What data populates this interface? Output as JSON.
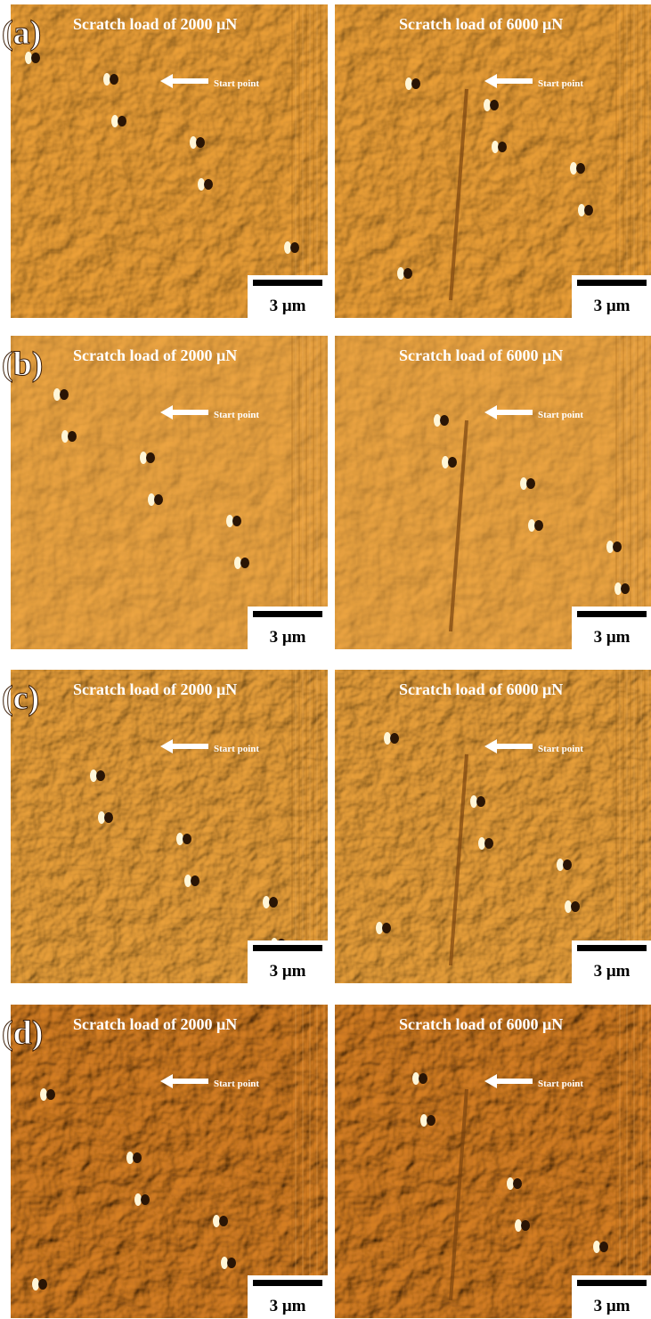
{
  "panels": [
    {
      "label": "(a)",
      "left": {
        "title": "Scratch load of 2000 μN",
        "start": "Start point",
        "scale": "3 μm"
      },
      "right": {
        "title": "Scratch load of 6000 μN",
        "start": "Start point",
        "scale": "3 μm"
      }
    },
    {
      "label": "(b)",
      "left": {
        "title": "Scratch load of 2000 μN",
        "start": "Start point",
        "scale": "3 μm"
      },
      "right": {
        "title": "Scratch load of 6000 μN",
        "start": "Start point",
        "scale": "3 μm"
      }
    },
    {
      "label": "(c)",
      "left": {
        "title": "Scratch load of 2000 μN",
        "start": "Start point",
        "scale": "3 μm"
      },
      "right": {
        "title": "Scratch load of 6000 μN",
        "start": "Start point",
        "scale": "3 μm"
      }
    },
    {
      "label": "(d)",
      "left": {
        "title": "Scratch load of 2000 μN",
        "start": "Start point",
        "scale": "3 μm"
      },
      "right": {
        "title": "Scratch load of 6000 μN",
        "start": "Start point",
        "scale": "3 μm"
      }
    }
  ]
}
